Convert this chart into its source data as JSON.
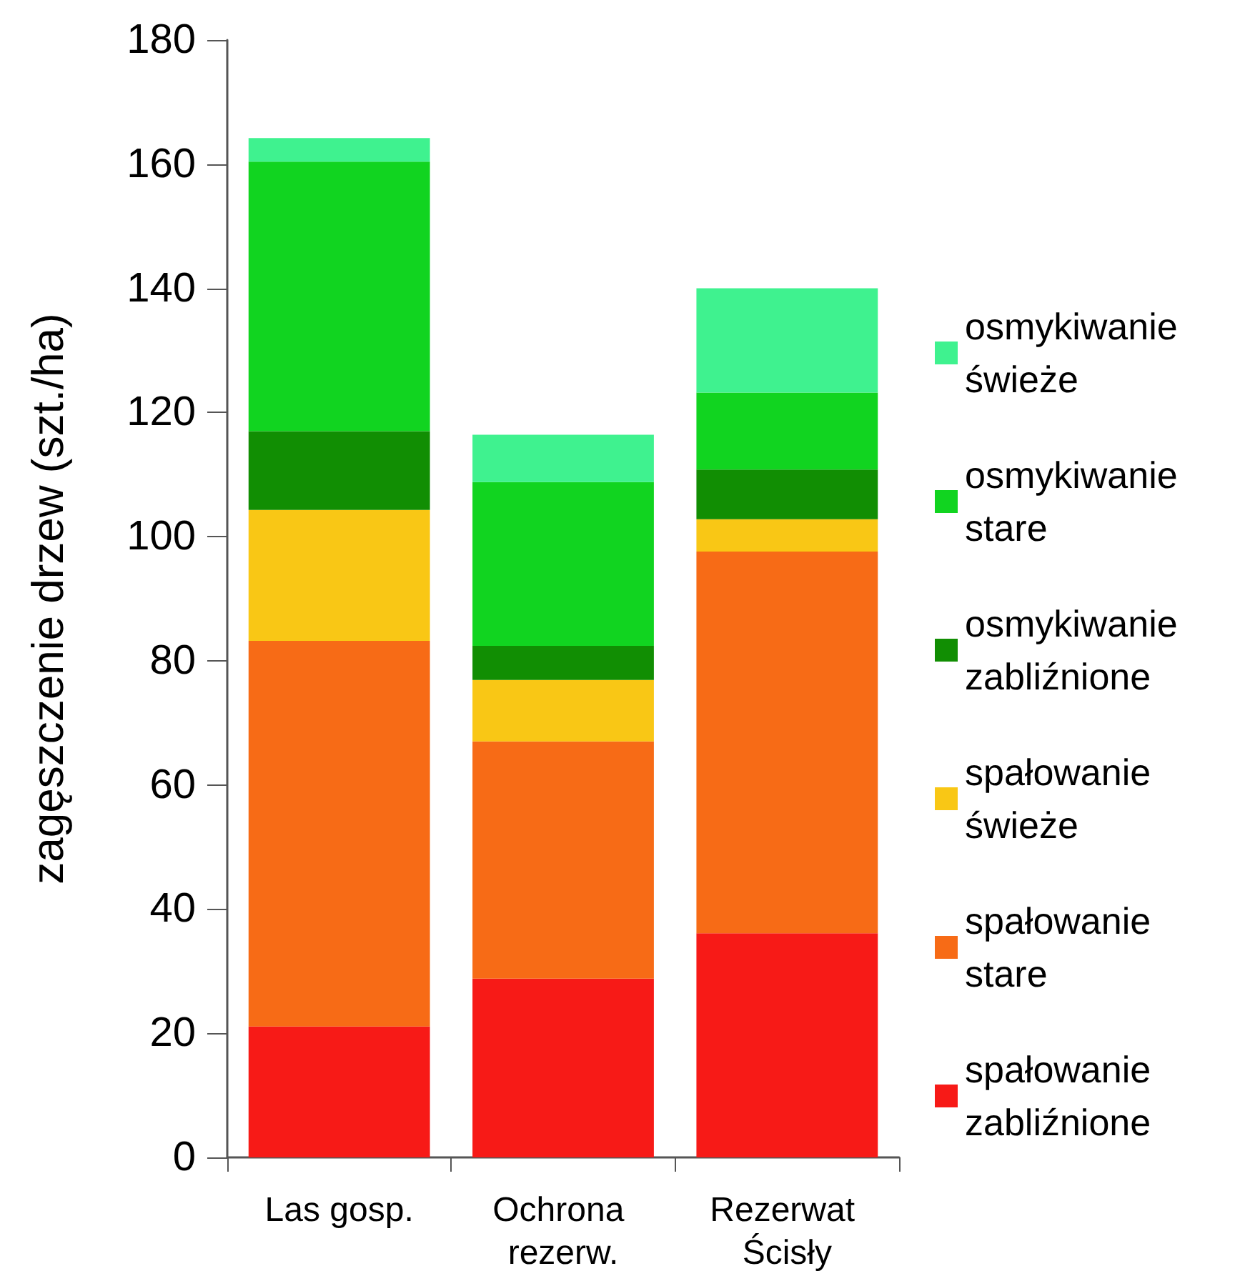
{
  "chart_data": {
    "type": "bar",
    "stacked": true,
    "ylabel": "zagęszczenie drzew (szt./ha)",
    "categories": [
      "Las gosp.",
      "Ochrona rezerw.",
      "Rezerwat Ścisły"
    ],
    "series": [
      {
        "name": "spałowanie zabliźnione",
        "color": "#f71a17",
        "values": [
          21.1,
          28.8,
          36.1
        ]
      },
      {
        "name": "spałowanie stare",
        "color": "#f76b16",
        "values": [
          62.1,
          38.2,
          61.5
        ]
      },
      {
        "name": "spałowanie świeże",
        "color": "#f9c715",
        "values": [
          21.1,
          9.9,
          5.2
        ]
      },
      {
        "name": "osmykiwanie zabliźnione",
        "color": "#118e03",
        "values": [
          12.7,
          5.5,
          8.0
        ]
      },
      {
        "name": "osmykiwanie stare",
        "color": "#11d420",
        "values": [
          43.4,
          26.4,
          12.4
        ]
      },
      {
        "name": "osmykiwanie świeże",
        "color": "#3ff28f",
        "values": [
          3.8,
          7.6,
          16.8
        ]
      }
    ],
    "ylim": [
      0,
      180
    ],
    "yticks": [
      0,
      20,
      40,
      60,
      80,
      100,
      120,
      140,
      160,
      180
    ],
    "grid": false,
    "legend": "right"
  }
}
